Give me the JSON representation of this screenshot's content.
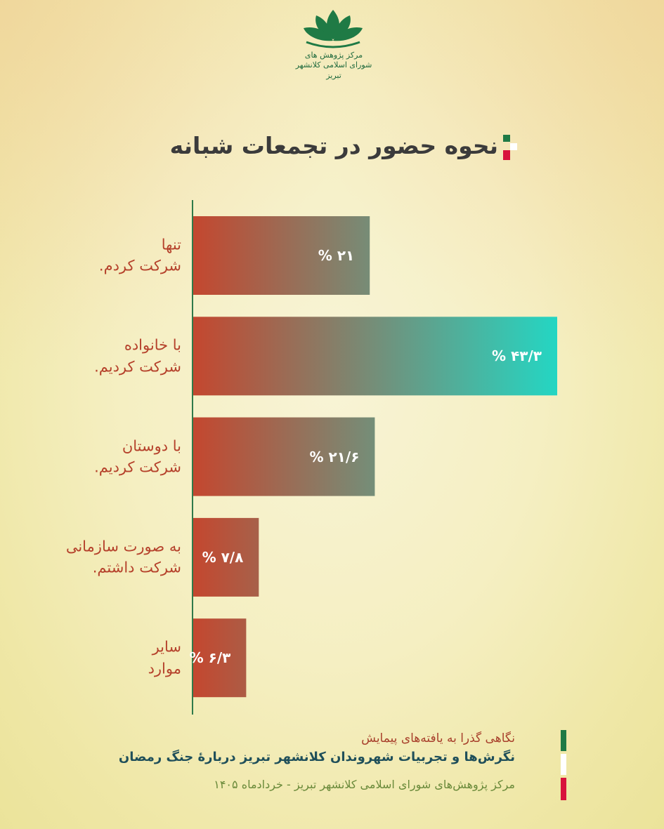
{
  "logo": "مرکز پژوهش های شورای اسلامی کلانشهر تبریز",
  "chart_data": {
    "type": "bar",
    "orientation": "horizontal",
    "title": "نحوه حضور در تجمعات شبانه",
    "categories": [
      "تنها\nشرکت کردم.",
      "با خانواده\nشرکت کردیم.",
      "با دوستان\nشرکت کردیم.",
      "به صورت سازمانی\nشرکت داشتم.",
      "سایر\nموارد"
    ],
    "values": [
      21,
      43.3,
      21.6,
      7.8,
      6.3
    ],
    "value_labels": [
      "۲۱ %",
      "۴۳/۳ %",
      "۲۱/۶ %",
      "۷/۸ %",
      "۶/۳ %"
    ],
    "color": [
      "#c4472f",
      "#24d6c3"
    ]
  },
  "footer": {
    "subtitle": "نگاهی گذرا به یافته‌های پیمایش",
    "survey": "نگرش‌ها و تجربیات شهروندان کلانشهر تبریز دربارهٔ جنگ رمضان",
    "source": "مرکز پژوهش‌های شورای اسلامی کلانشهر تبریز - خردادماه ۱۴۰۵"
  }
}
